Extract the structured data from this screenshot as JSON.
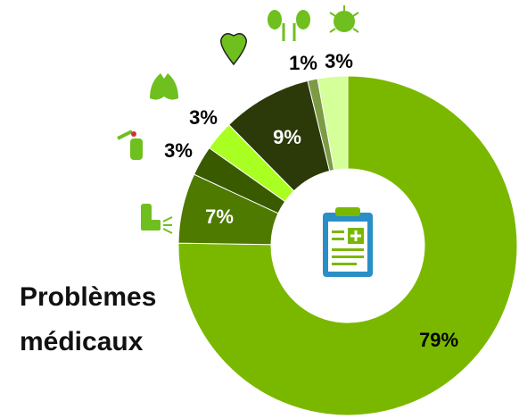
{
  "chart_data": {
    "type": "donut",
    "title": [
      "Problèmes",
      "médicaux"
    ],
    "values": [
      79,
      7,
      3,
      3,
      9,
      1,
      3
    ],
    "value_labels": [
      "79%",
      "7%",
      "3%",
      "3%",
      "9%",
      "1%",
      "3%"
    ],
    "colors": [
      "#7ab800",
      "#4f7a00",
      "#3a5a00",
      "#aaff22",
      "#2b3a08",
      "#7d9a45",
      "#d4ff99"
    ]
  }
}
